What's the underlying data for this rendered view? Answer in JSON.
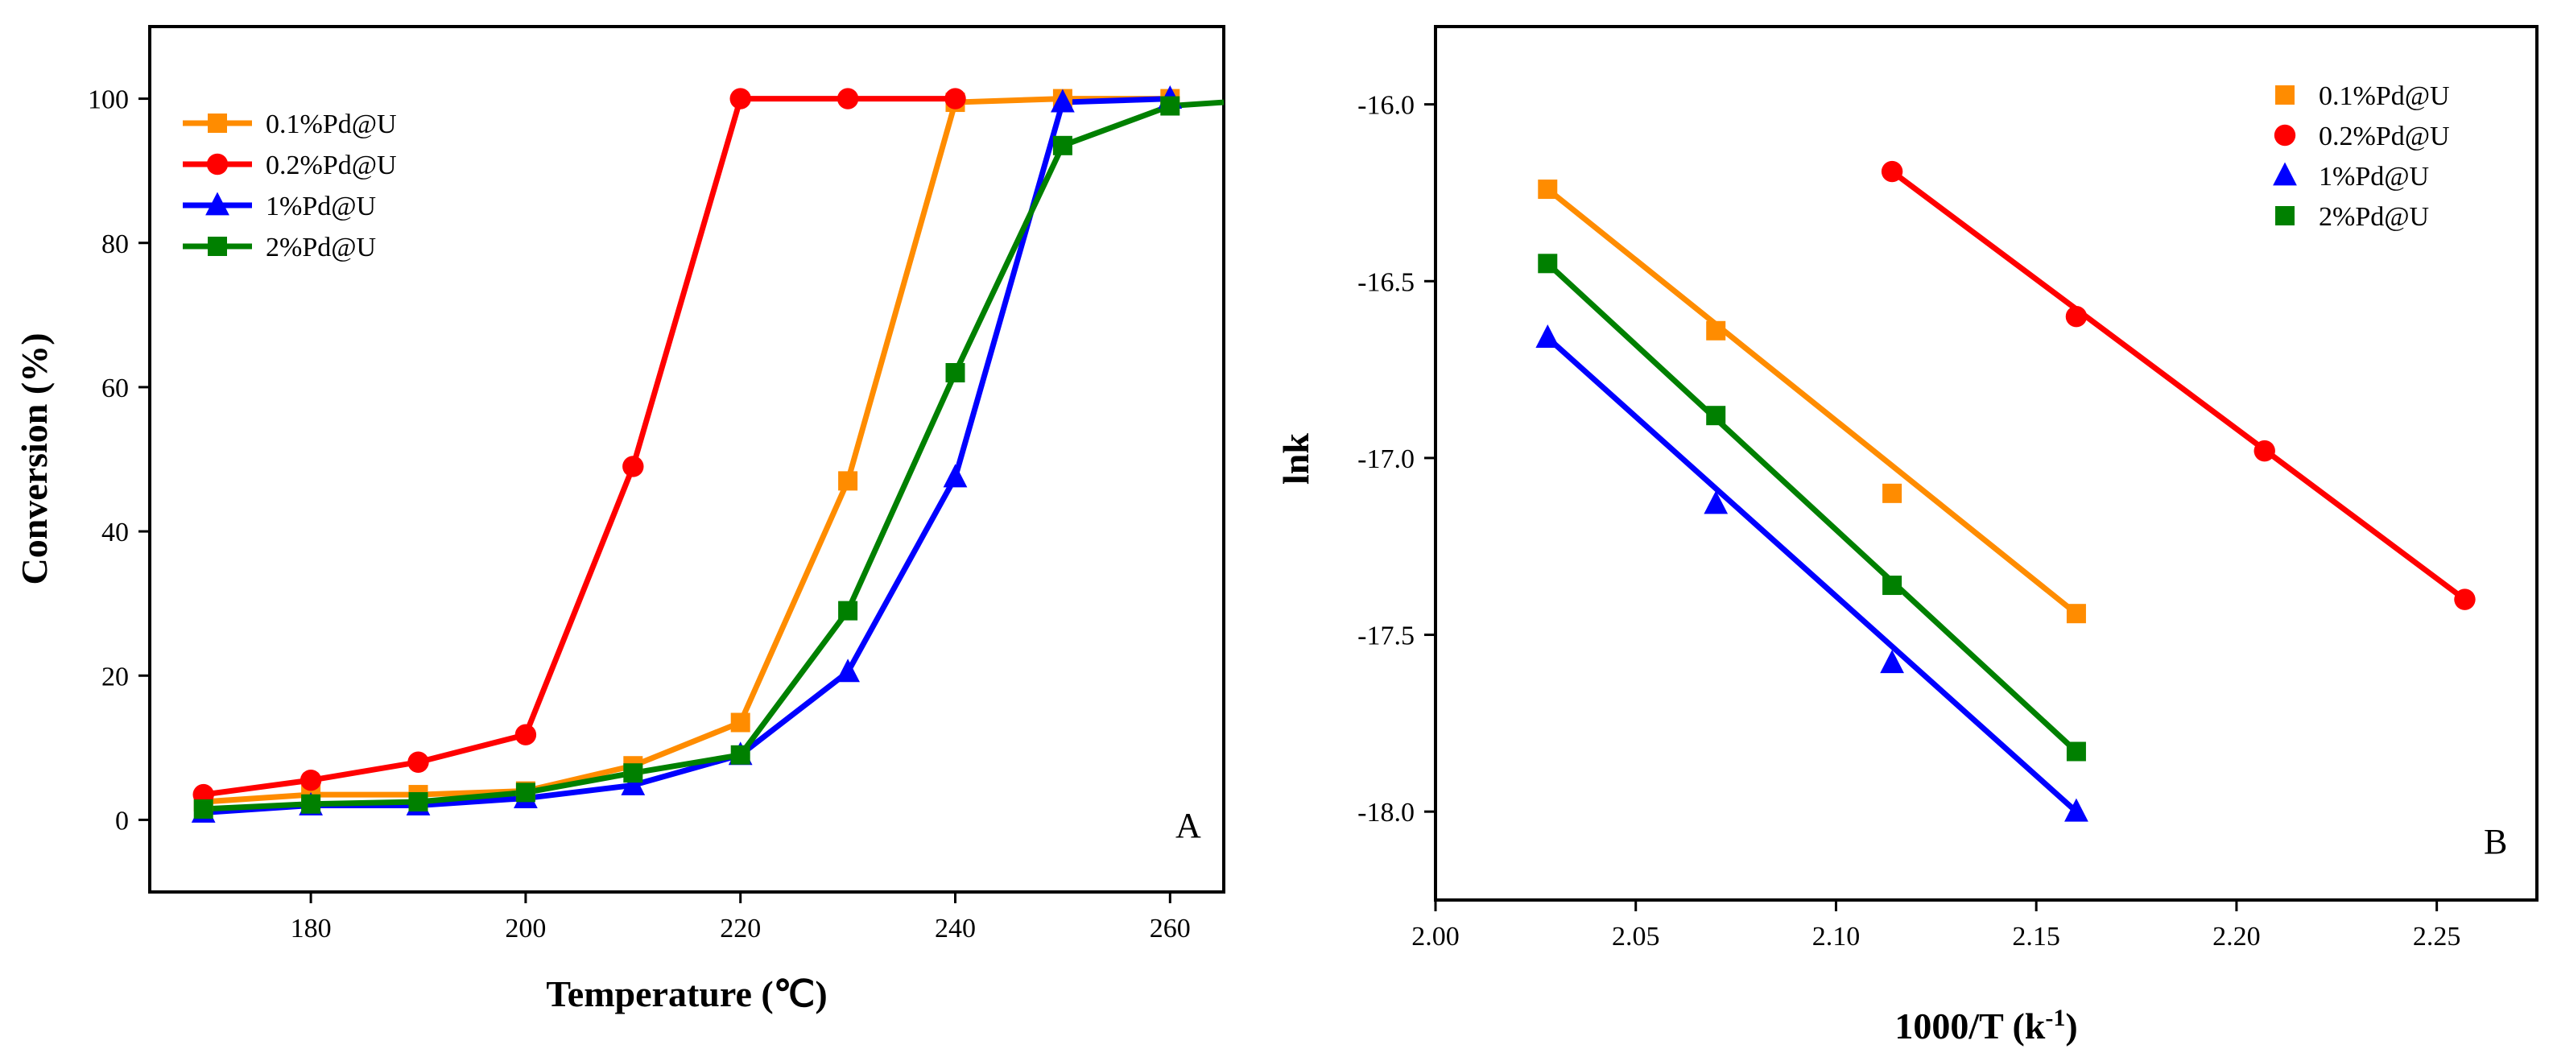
{
  "colors": {
    "0.1%Pd@U": "#ff8c00",
    "0.2%Pd@U": "#ff0000",
    "1%Pd@U": "#0000ff",
    "2%Pd@U": "#008000"
  },
  "chart_data": [
    {
      "type": "line",
      "panel_label": "A",
      "xlabel": "Temperature (℃)",
      "ylabel": "Conversion (%)",
      "xlim": [
        165,
        265
      ],
      "ylim": [
        -10,
        110
      ],
      "xticks": [
        180,
        200,
        220,
        240,
        260
      ],
      "yticks": [
        0,
        20,
        40,
        60,
        80,
        100
      ],
      "xtick_labels": [
        "180",
        "200",
        "220",
        "240",
        "260"
      ],
      "ytick_labels": [
        "0",
        "20",
        "40",
        "60",
        "80",
        "100"
      ],
      "legend_position": "top-left",
      "series": [
        {
          "name": "0.1%Pd@U",
          "marker": "square",
          "x": [
            170,
            180,
            190,
            200,
            210,
            220,
            230,
            240,
            250,
            260
          ],
          "y": [
            2.5,
            3.5,
            3.5,
            4.0,
            7.5,
            13.5,
            47.0,
            99.5,
            100.0,
            100.0
          ]
        },
        {
          "name": "0.2%Pd@U",
          "marker": "circle",
          "x": [
            170,
            180,
            190,
            200,
            210,
            220,
            230,
            240
          ],
          "y": [
            3.5,
            5.5,
            8.0,
            11.8,
            49.0,
            100.0,
            100.0,
            100.0
          ]
        },
        {
          "name": "1%Pd@U",
          "marker": "triangle",
          "x": [
            170,
            180,
            190,
            200,
            210,
            220,
            230,
            240,
            250,
            260
          ],
          "y": [
            1.0,
            2.0,
            2.0,
            3.0,
            4.8,
            9.0,
            20.5,
            47.5,
            99.5,
            100.0
          ]
        },
        {
          "name": "2%Pd@U",
          "marker": "square",
          "x": [
            170,
            180,
            190,
            200,
            210,
            220,
            230,
            240,
            250,
            260,
            265
          ],
          "y": [
            1.5,
            2.2,
            2.5,
            3.8,
            6.5,
            9.0,
            29.0,
            62.0,
            93.5,
            99.0,
            99.5
          ]
        }
      ]
    },
    {
      "type": "scatter",
      "panel_label": "B",
      "xlabel": "1000/T (k",
      "xlabel_sup": "-1",
      "xlabel_end": ")",
      "ylabel": "lnk",
      "xlim": [
        2.0,
        2.275
      ],
      "ylim": [
        -18.25,
        -15.78
      ],
      "xticks": [
        2.0,
        2.05,
        2.1,
        2.15,
        2.2,
        2.25
      ],
      "yticks": [
        -16.0,
        -16.5,
        -17.0,
        -17.5,
        -18.0
      ],
      "xtick_labels": [
        "2.00",
        "2.05",
        "2.10",
        "2.15",
        "2.20",
        "2.25"
      ],
      "ytick_labels": [
        "-16.0",
        "-16.5",
        "-17.0",
        "-17.5",
        "-18.0"
      ],
      "legend_position": "top-right",
      "series": [
        {
          "name": "0.1%Pd@U",
          "marker": "square",
          "x": [
            2.028,
            2.07,
            2.114,
            2.16
          ],
          "y": [
            -16.24,
            -16.64,
            -17.1,
            -17.44
          ],
          "fit": [
            [
              2.028,
              -16.24
            ],
            [
              2.16,
              -17.44
            ]
          ]
        },
        {
          "name": "0.2%Pd@U",
          "marker": "circle",
          "x": [
            2.114,
            2.16,
            2.207,
            2.257
          ],
          "y": [
            -16.19,
            -16.6,
            -16.98,
            -17.4
          ],
          "fit": [
            [
              2.114,
              -16.19
            ],
            [
              2.257,
              -17.4
            ]
          ]
        },
        {
          "name": "1%Pd@U",
          "marker": "triangle",
          "x": [
            2.028,
            2.07,
            2.114,
            2.16
          ],
          "y": [
            -16.66,
            -17.13,
            -17.58,
            -18.0
          ],
          "fit": [
            [
              2.028,
              -16.66
            ],
            [
              2.16,
              -18.0
            ]
          ]
        },
        {
          "name": "2%Pd@U",
          "marker": "square",
          "x": [
            2.028,
            2.07,
            2.114,
            2.16
          ],
          "y": [
            -16.45,
            -16.88,
            -17.36,
            -17.83
          ],
          "fit": [
            [
              2.028,
              -16.45
            ],
            [
              2.16,
              -17.83
            ]
          ]
        }
      ]
    }
  ]
}
